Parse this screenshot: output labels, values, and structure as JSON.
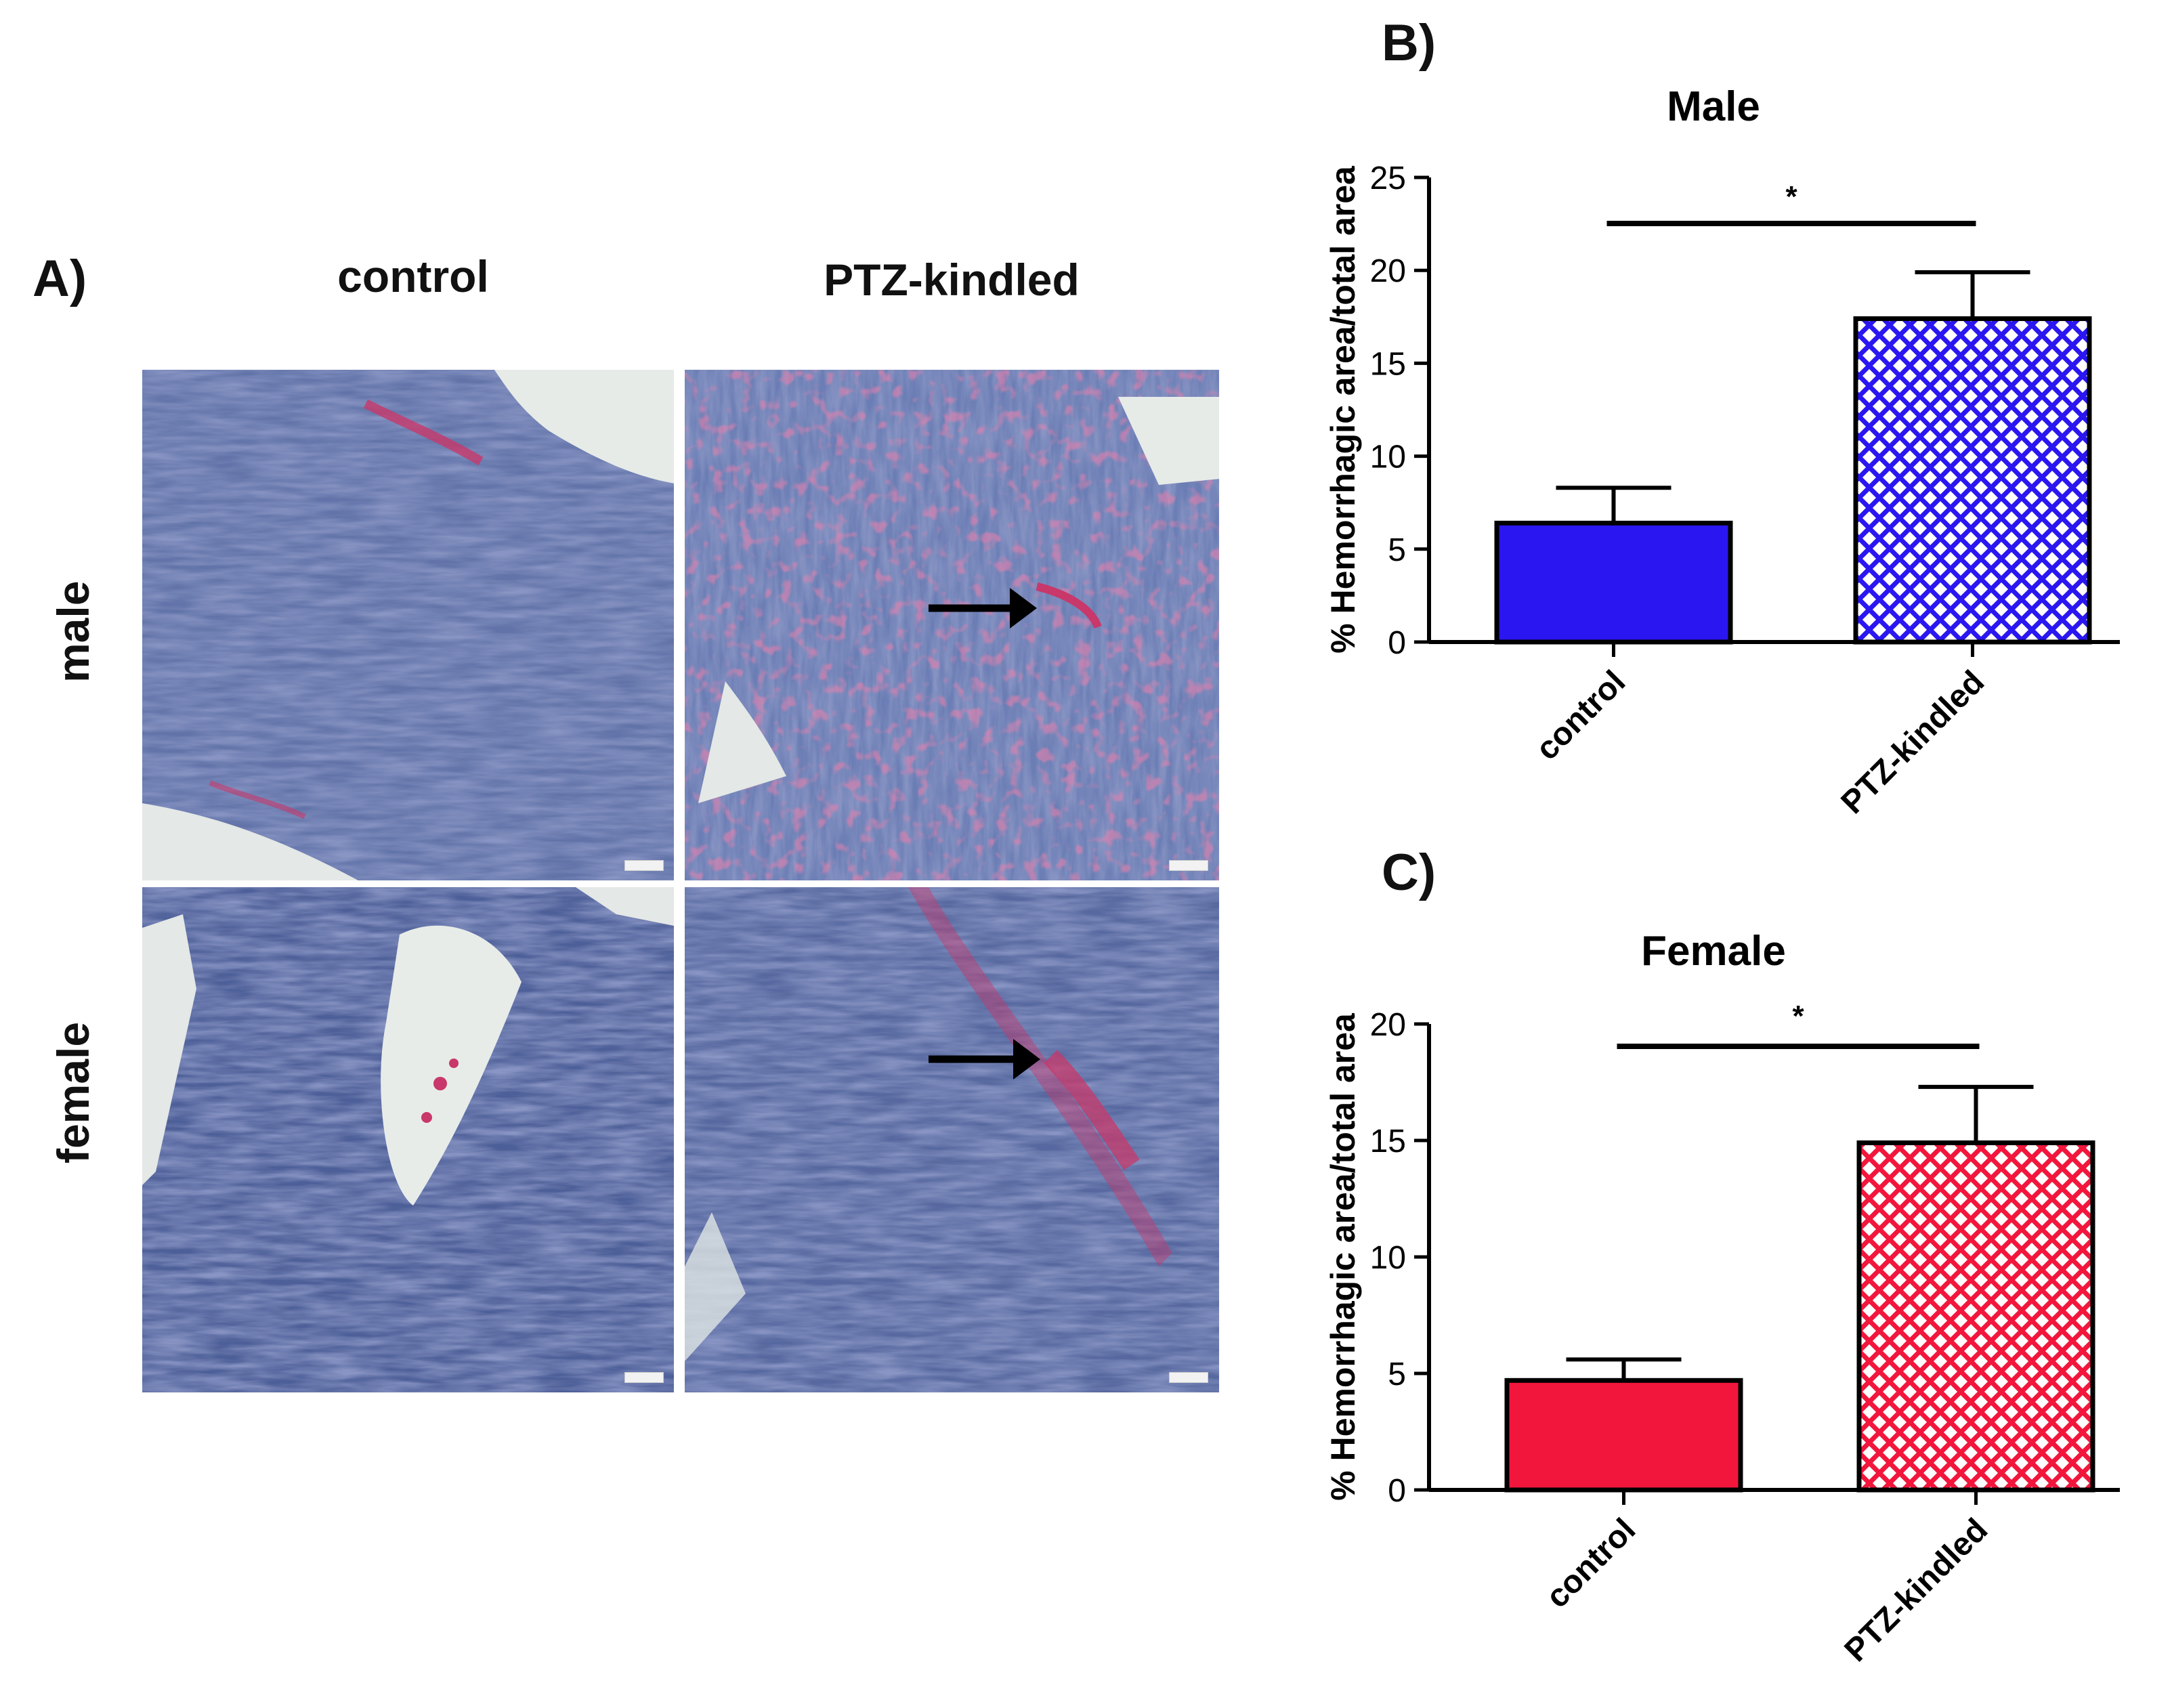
{
  "panel_a": {
    "letter": "A)",
    "columns": [
      "control",
      "PTZ-kindled"
    ],
    "rows": [
      "male",
      "female"
    ]
  },
  "panel_b": {
    "letter": "B)"
  },
  "panel_c": {
    "letter": "C)"
  },
  "colors": {
    "tissue_base": "#5b6fa5",
    "tissue_dark": "#3c4a86",
    "lumen": "#e9ecea",
    "hemorrhage": "#c8386a",
    "male_bar": "#2a16f0",
    "female_bar": "#f2163c",
    "axis": "#000000"
  },
  "chart_data": [
    {
      "type": "bar",
      "title": "Male",
      "ylabel": "% Hemorrhagic area/total area",
      "xlabel": "",
      "categories": [
        "control",
        "PTZ-kindled"
      ],
      "values": [
        6.4,
        17.4
      ],
      "errors": [
        1.9,
        2.5
      ],
      "ylim": [
        0,
        25
      ],
      "yticks": [
        0,
        5,
        10,
        15,
        20,
        25
      ],
      "fills": [
        "solid",
        "crosshatch"
      ],
      "color": "#2a16f0",
      "significance": {
        "label": "*",
        "between": [
          0,
          1
        ]
      }
    },
    {
      "type": "bar",
      "title": "Female",
      "ylabel": "% Hemorrhagic area/total area",
      "xlabel": "",
      "categories": [
        "control",
        "PTZ-kindled"
      ],
      "values": [
        4.7,
        14.9
      ],
      "errors": [
        0.9,
        2.4
      ],
      "ylim": [
        0,
        20
      ],
      "yticks": [
        0,
        5,
        10,
        15,
        20
      ],
      "fills": [
        "solid",
        "crosshatch"
      ],
      "color": "#f2163c",
      "significance": {
        "label": "*",
        "between": [
          0,
          1
        ]
      }
    }
  ]
}
